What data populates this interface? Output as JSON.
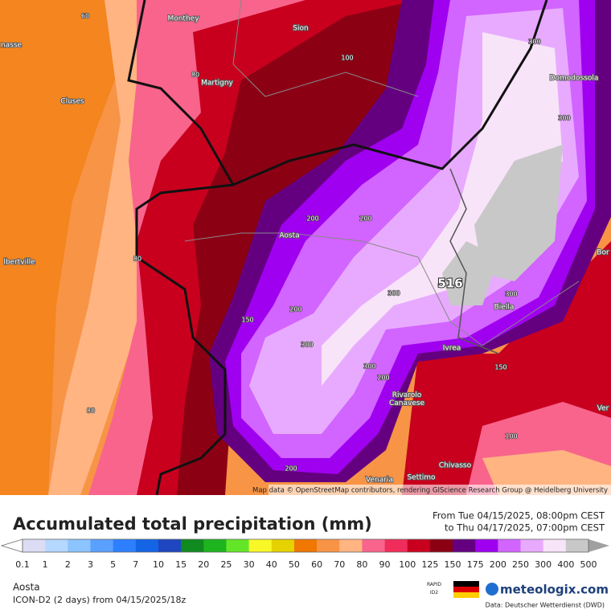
{
  "map": {
    "places": [
      "nasse",
      "Monthey",
      "Sion",
      "Martigny",
      "Cluses",
      "Domodossola",
      "Aosta",
      "lbertville",
      "Biella",
      "Ivrea",
      "Rivarolo\nCanavese",
      "Chivasso",
      "Venaria",
      "Settimo",
      "Bor",
      "Ver"
    ],
    "contour_labels": [
      "60",
      "80",
      "100",
      "300",
      "300",
      "200",
      "200",
      "150",
      "200",
      "300",
      "516",
      "300",
      "300",
      "300",
      "200",
      "150",
      "100",
      "80",
      "200",
      "80"
    ],
    "attribution": "Map data © OpenStreetMap contributors, rendering GIScience Research Group @ Heidelberg University"
  },
  "legend": {
    "title": "Accumulated total precipitation (mm)",
    "period_from": "From Tue 04/15/2025, 08:00pm CEST",
    "period_to": "to Thu 04/17/2025, 07:00pm CEST",
    "levels": [
      "0.1",
      "1",
      "2",
      "3",
      "5",
      "7",
      "10",
      "15",
      "20",
      "25",
      "30",
      "40",
      "50",
      "60",
      "70",
      "80",
      "90",
      "100",
      "125",
      "150",
      "175",
      "200",
      "250",
      "300",
      "400",
      "500"
    ],
    "under_color": "#ffffff",
    "colors": [
      "#dcdcf4",
      "#b4d8ff",
      "#8cc4ff",
      "#5aa0ff",
      "#2c80ff",
      "#1464e6",
      "#1e46c0",
      "#0f8a1e",
      "#1eb41e",
      "#64e628",
      "#f8f828",
      "#e6d200",
      "#f07800",
      "#f89446",
      "#ffb482",
      "#f8648c",
      "#f02d5a",
      "#c8001e",
      "#8c0014",
      "#640080",
      "#a000f0",
      "#d264ff",
      "#e8aaff",
      "#f8e4f8",
      "#c8c8c8"
    ],
    "over_color": "#a0a0a0"
  },
  "footer": {
    "location": "Aosta",
    "model": "ICON-D2 (2 days) from  04/15/2025/18z",
    "badge": "RAPID\nID2",
    "brand": "meteologix.com",
    "source": "Data: Deutscher Wetterdienst (DWD)"
  }
}
